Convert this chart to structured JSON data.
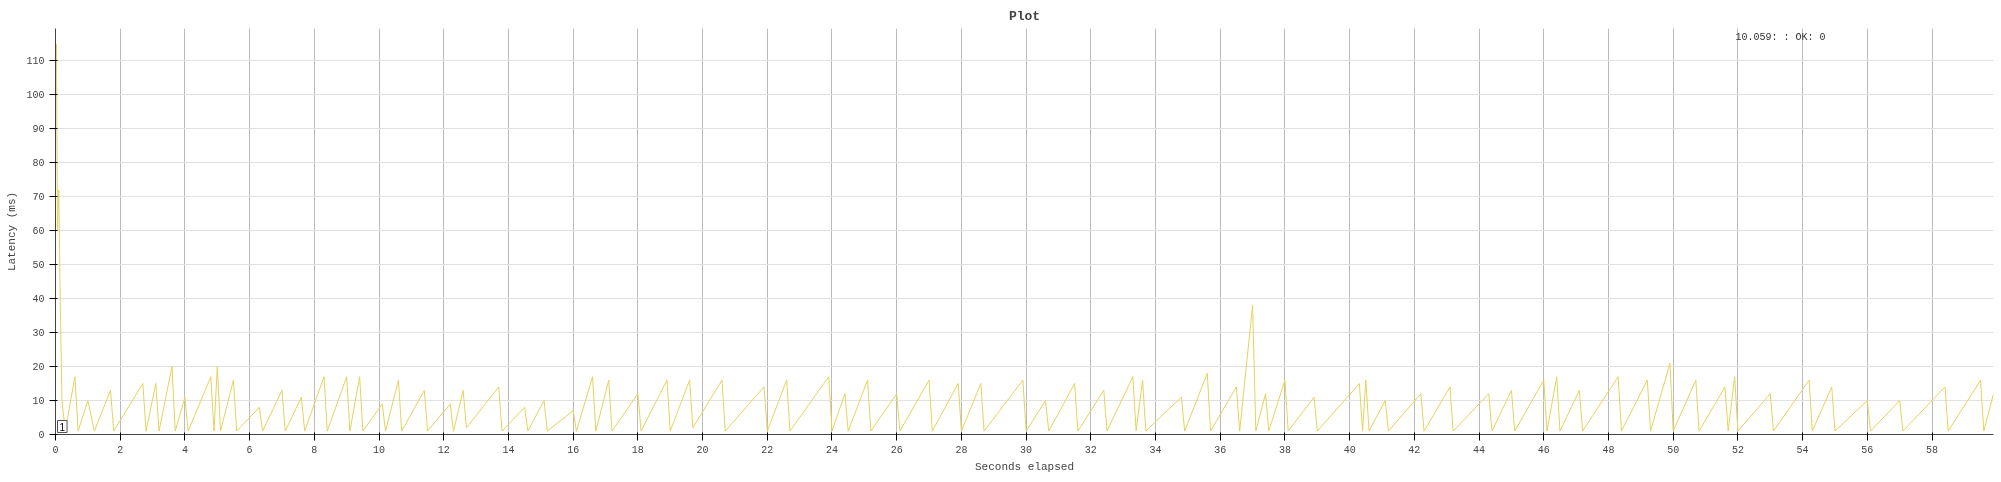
{
  "chart_data": {
    "type": "line",
    "title": "Plot",
    "xlabel": "Seconds elapsed",
    "ylabel": "Latency (ms)",
    "annotations": [
      "10.059: : OK: 0",
      "1"
    ],
    "xlim": [
      0,
      59.9
    ],
    "ylim": [
      0,
      119.5
    ],
    "xticks": [
      0,
      2,
      4,
      6,
      8,
      10,
      12,
      14,
      16,
      18,
      20,
      22,
      24,
      26,
      28,
      30,
      32,
      34,
      36,
      38,
      40,
      42,
      44,
      46,
      48,
      50,
      52,
      54,
      56,
      58
    ],
    "yticks": [
      0,
      10,
      20,
      30,
      40,
      50,
      60,
      70,
      80,
      90,
      100,
      110
    ],
    "grid": true,
    "marker": "none",
    "line_style": "solid",
    "series": [
      {
        "color": "#e6d25e",
        "x": [
          0.03,
          0.06,
          0.1,
          0.15,
          0.2,
          0.3,
          0.6,
          0.7,
          1.0,
          1.2,
          1.7,
          1.8,
          2.7,
          2.8,
          3.1,
          3.2,
          3.6,
          3.7,
          4.0,
          4.1,
          4.8,
          4.9,
          5.0,
          5.1,
          5.5,
          5.6,
          6.3,
          6.4,
          7.0,
          7.1,
          7.6,
          7.7,
          8.3,
          8.4,
          9.0,
          9.1,
          9.4,
          9.5,
          10.1,
          10.2,
          10.6,
          10.7,
          11.4,
          11.5,
          12.2,
          12.3,
          12.6,
          12.7,
          13.7,
          13.8,
          14.5,
          14.6,
          15.1,
          15.2,
          16.0,
          16.1,
          16.6,
          16.7,
          17.1,
          17.2,
          18.0,
          18.1,
          18.9,
          19.0,
          19.6,
          19.7,
          20.6,
          20.7,
          21.9,
          22.0,
          22.6,
          22.7,
          23.9,
          24.0,
          24.4,
          24.5,
          25.1,
          25.2,
          26.0,
          26.1,
          27.0,
          27.1,
          27.9,
          28.0,
          28.6,
          28.7,
          29.9,
          30.0,
          30.6,
          30.7,
          31.5,
          31.6,
          32.4,
          32.5,
          33.3,
          33.4,
          33.6,
          33.7,
          34.8,
          34.9,
          35.6,
          35.7,
          36.5,
          36.6,
          37.0,
          37.1,
          37.4,
          37.5,
          38.0,
          38.1,
          38.9,
          39.0,
          40.3,
          40.4,
          40.5,
          40.6,
          41.1,
          41.2,
          42.2,
          42.3,
          43.1,
          43.2,
          44.3,
          44.4,
          45.0,
          45.1,
          46.0,
          46.1,
          46.4,
          46.5,
          47.1,
          47.2,
          48.3,
          48.4,
          49.2,
          49.3,
          49.9,
          50.0,
          50.7,
          50.8,
          51.6,
          51.7,
          51.9,
          52.0,
          53.0,
          53.1,
          54.2,
          54.3,
          54.9,
          55.0,
          56.0,
          56.1,
          57.0,
          57.1,
          58.4,
          58.5,
          59.5,
          59.6,
          59.9
        ],
        "values": [
          115,
          60,
          72,
          37,
          10,
          1,
          17,
          1,
          10,
          1,
          13,
          1,
          15,
          1,
          15,
          1,
          20,
          1,
          11,
          1,
          17,
          1,
          20,
          1,
          16,
          1,
          8,
          1,
          13,
          1,
          11,
          1,
          17,
          1,
          17,
          1,
          17,
          1,
          9,
          1,
          16,
          1,
          13,
          1,
          9,
          1,
          13,
          2,
          14,
          1,
          8,
          1,
          10,
          1,
          7,
          1,
          17,
          1,
          16,
          1,
          12,
          1,
          16,
          1,
          16,
          2,
          16,
          1,
          14,
          1,
          16,
          1,
          17,
          1,
          12,
          1,
          16,
          1,
          12,
          1,
          16,
          1,
          15,
          1,
          15,
          1,
          16,
          1,
          10,
          1,
          15,
          1,
          13,
          1,
          17,
          1,
          16,
          1,
          11,
          1,
          18,
          1,
          14,
          1,
          38,
          1,
          12,
          1,
          16,
          1,
          11,
          1,
          15,
          1,
          16,
          1,
          10,
          1,
          12,
          1,
          14,
          1,
          12,
          1,
          13,
          1,
          16,
          1,
          17,
          1,
          13,
          1,
          17,
          1,
          16,
          1,
          21,
          1,
          16,
          1,
          14,
          1,
          17,
          1,
          12,
          1,
          16,
          1,
          14,
          1,
          10,
          1,
          10,
          1,
          14,
          1,
          16,
          1,
          12
        ]
      }
    ]
  }
}
